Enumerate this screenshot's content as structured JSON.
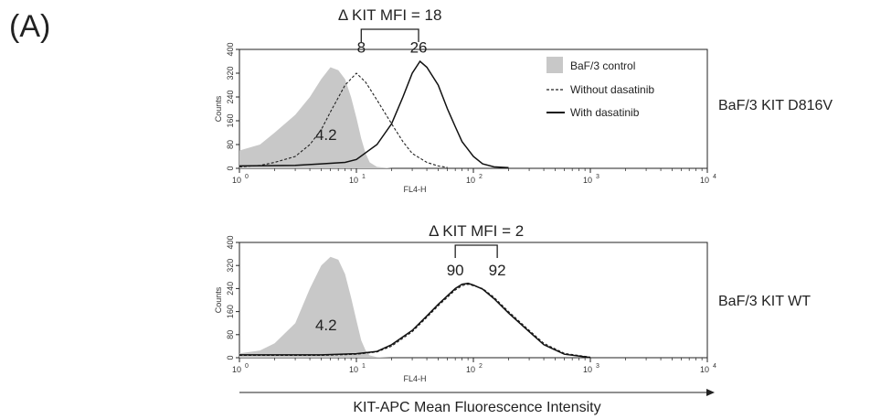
{
  "panel_label": "(A)",
  "x_axis_title": "KIT-APC Mean Fluorescence Intensity",
  "legend": [
    {
      "label": "BaF/3 control",
      "style": "filled-gray",
      "color": "#c8c8c8"
    },
    {
      "label": "Without dasatinib",
      "style": "dashed",
      "color": "#222222"
    },
    {
      "label": "With dasatinib",
      "style": "solid",
      "color": "#111111"
    }
  ],
  "chart_data": [
    {
      "type": "area",
      "row_label": "BaF/3 KIT D816V",
      "delta_label": "Δ KIT MFI = 18",
      "xlabel": "FL4-H",
      "ylabel": "Counts",
      "x_scale": "log",
      "xlim": [
        1,
        10000
      ],
      "ylim": [
        0,
        400
      ],
      "x_ticks": [
        "10",
        "10",
        "10",
        "10",
        "10"
      ],
      "x_tick_exponents": [
        "0",
        "1",
        "2",
        "3",
        "4"
      ],
      "y_ticks": [
        "0",
        "80",
        "160",
        "240",
        "320",
        "400"
      ],
      "annotations": [
        {
          "text": "8",
          "x": 11,
          "y": 390
        },
        {
          "text": "26",
          "x": 34,
          "y": 390
        },
        {
          "text": "4.2",
          "x": 5.5,
          "y": 95
        }
      ],
      "series": [
        {
          "name": "BaF/3 control",
          "style": "filled",
          "x": [
            1,
            1.5,
            2,
            3,
            4,
            5,
            6,
            7,
            8,
            9,
            10,
            11,
            12,
            13,
            15,
            20
          ],
          "y": [
            60,
            80,
            120,
            180,
            240,
            300,
            340,
            330,
            300,
            240,
            170,
            100,
            50,
            20,
            5,
            0
          ]
        },
        {
          "name": "Without dasatinib",
          "style": "dashed",
          "x": [
            1,
            1.5,
            2,
            3,
            4,
            5,
            6,
            8,
            10,
            12,
            15,
            20,
            25,
            30,
            40,
            50,
            60
          ],
          "y": [
            5,
            10,
            20,
            40,
            80,
            130,
            190,
            280,
            320,
            290,
            230,
            150,
            90,
            50,
            20,
            8,
            3
          ]
        },
        {
          "name": "With dasatinib",
          "style": "solid",
          "x": [
            1,
            3,
            5,
            8,
            10,
            15,
            20,
            25,
            30,
            35,
            40,
            50,
            60,
            70,
            80,
            100,
            120,
            150,
            200
          ],
          "y": [
            8,
            10,
            15,
            20,
            30,
            80,
            150,
            240,
            320,
            360,
            340,
            280,
            200,
            140,
            90,
            40,
            15,
            5,
            2
          ]
        }
      ]
    },
    {
      "type": "area",
      "row_label": "BaF/3 KIT WT",
      "delta_label": "Δ KIT MFI = 2",
      "xlabel": "FL4-H",
      "ylabel": "Counts",
      "x_scale": "log",
      "xlim": [
        1,
        10000
      ],
      "ylim": [
        0,
        400
      ],
      "x_ticks": [
        "10",
        "10",
        "10",
        "10",
        "10"
      ],
      "x_tick_exponents": [
        "0",
        "1",
        "2",
        "3",
        "4"
      ],
      "y_ticks": [
        "0",
        "80",
        "160",
        "240",
        "320",
        "400"
      ],
      "annotations": [
        {
          "text": "90",
          "x": 70,
          "y": 285
        },
        {
          "text": "92",
          "x": 160,
          "y": 285
        },
        {
          "text": "4.2",
          "x": 5.5,
          "y": 95
        }
      ],
      "series": [
        {
          "name": "BaF/3 control",
          "style": "filled",
          "x": [
            1,
            1.5,
            2,
            3,
            4,
            5,
            6,
            7,
            8,
            9,
            10,
            11,
            12,
            13,
            15,
            20
          ],
          "y": [
            15,
            25,
            50,
            120,
            240,
            320,
            350,
            340,
            290,
            210,
            130,
            60,
            25,
            8,
            2,
            0
          ]
        },
        {
          "name": "Without dasatinib",
          "style": "dashed",
          "x": [
            1,
            5,
            10,
            15,
            20,
            30,
            40,
            50,
            60,
            70,
            80,
            90,
            100,
            120,
            150,
            200,
            300,
            400,
            600,
            1000
          ],
          "y": [
            8,
            8,
            12,
            20,
            40,
            90,
            140,
            180,
            210,
            235,
            250,
            255,
            250,
            240,
            210,
            160,
            95,
            50,
            15,
            2
          ]
        },
        {
          "name": "With dasatinib",
          "style": "solid",
          "x": [
            1,
            5,
            10,
            15,
            20,
            30,
            40,
            50,
            60,
            70,
            80,
            90,
            100,
            120,
            150,
            200,
            300,
            400,
            600,
            1000
          ],
          "y": [
            10,
            10,
            14,
            22,
            45,
            95,
            145,
            185,
            215,
            240,
            255,
            258,
            252,
            238,
            205,
            155,
            90,
            45,
            12,
            1
          ]
        }
      ]
    }
  ]
}
